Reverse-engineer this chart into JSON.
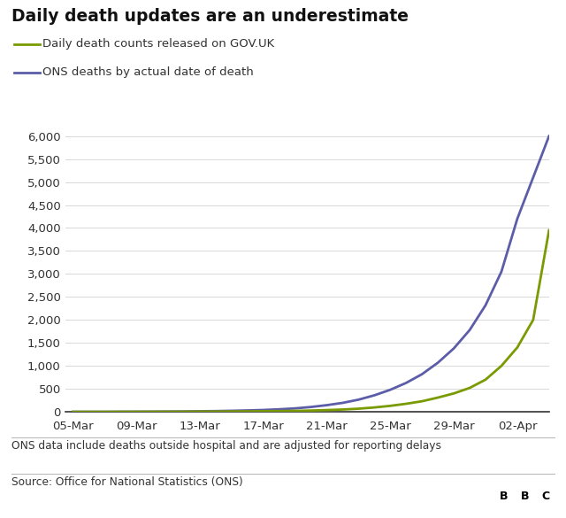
{
  "title": "Daily death updates are an underestimate",
  "legend_green": "Daily death counts released on GOV.UK",
  "legend_purple": "ONS deaths by actual date of death",
  "footnote1": "ONS data include deaths outside hospital and are adjusted for reporting delays",
  "footnote2": "Source: Office for National Statistics (ONS)",
  "bbc_logo": "BBC",
  "x_labels": [
    "05-Mar",
    "09-Mar",
    "13-Mar",
    "17-Mar",
    "21-Mar",
    "25-Mar",
    "29-Mar",
    "02-Apr"
  ],
  "ylim": [
    0,
    6200
  ],
  "yticks": [
    0,
    500,
    1000,
    1500,
    2000,
    2500,
    3000,
    3500,
    4000,
    4500,
    5000,
    5500,
    6000
  ],
  "green_color": "#7a9a01",
  "purple_color": "#5c5da8",
  "background_color": "#ffffff",
  "green_y": [
    0,
    0,
    0,
    1,
    1,
    2,
    2,
    3,
    5,
    6,
    8,
    10,
    13,
    16,
    20,
    28,
    38,
    50,
    68,
    95,
    130,
    175,
    230,
    310,
    400,
    520,
    700,
    1000,
    1400,
    2000,
    3950
  ],
  "purple_y": [
    0,
    0,
    0,
    2,
    3,
    4,
    6,
    8,
    12,
    16,
    22,
    30,
    40,
    55,
    75,
    105,
    145,
    195,
    265,
    360,
    480,
    630,
    820,
    1070,
    1380,
    1780,
    2320,
    3050,
    4200,
    5100,
    6000
  ]
}
